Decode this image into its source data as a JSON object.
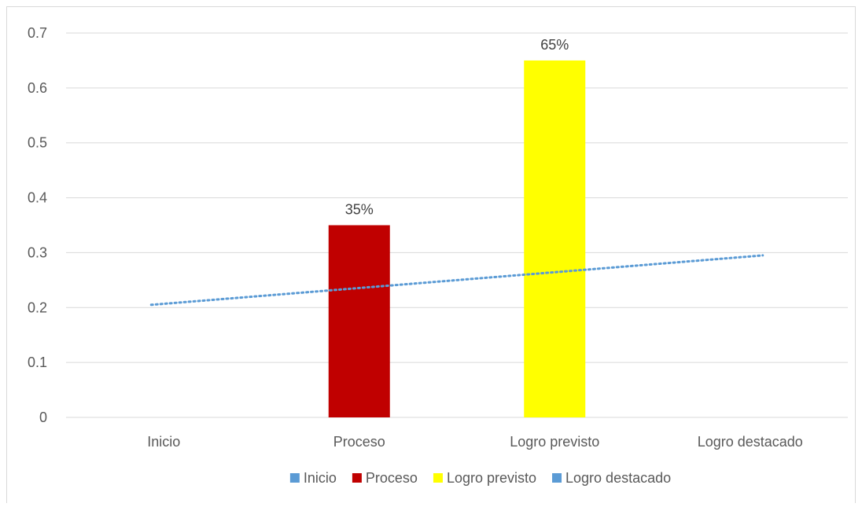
{
  "chart_data": {
    "type": "bar",
    "categories": [
      "Inicio",
      "Proceso",
      "Logro previsto",
      "Logro destacado"
    ],
    "values": [
      0,
      0.35,
      0.65,
      0
    ],
    "data_labels": [
      "",
      "35%",
      "65%",
      ""
    ],
    "bar_colors": [
      "#5b9bd5",
      "#c00000",
      "#ffff00",
      "#5b9bd5"
    ],
    "ylim": [
      0,
      0.7
    ],
    "yticks": [
      "0",
      "0.1",
      "0.2",
      "0.3",
      "0.4",
      "0.5",
      "0.6",
      "0.7"
    ],
    "yticks_values": [
      0,
      0.1,
      0.2,
      0.3,
      0.4,
      0.5,
      0.6,
      0.7
    ],
    "grid": true,
    "trendline": {
      "style": "dotted",
      "color": "#5b9bd5",
      "start": 0.205,
      "end": 0.295
    },
    "legend": {
      "placement": "bottom",
      "entries": [
        {
          "label": "Inicio",
          "color": "#5b9bd5"
        },
        {
          "label": "Proceso",
          "color": "#c00000"
        },
        {
          "label": "Logro previsto",
          "color": "#ffff00"
        },
        {
          "label": "Logro destacado",
          "color": "#5b9bd5"
        }
      ]
    }
  }
}
